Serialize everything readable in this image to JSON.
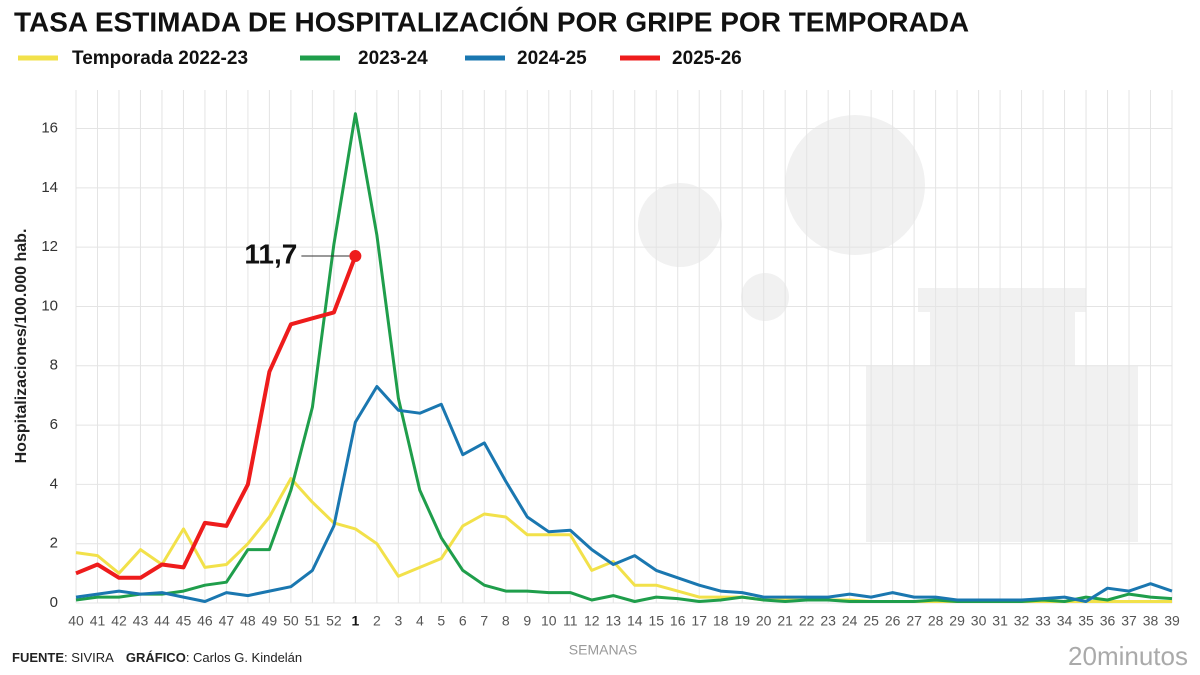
{
  "chart_data": {
    "type": "line",
    "title": "TASA ESTIMADA DE HOSPITALIZACIÓN POR GRIPE POR TEMPORADA",
    "y_label": "Hospitalizaciones/100.000 hab.",
    "x_label": "SEMANAS",
    "source": [
      "FUENTE",
      ": SIVIRA"
    ],
    "credit": [
      "GRÁFICO",
      ": Carlos G. Kindelán"
    ],
    "brand": "20minutos",
    "categories": [
      "40",
      "41",
      "42",
      "43",
      "44",
      "45",
      "46",
      "47",
      "48",
      "49",
      "50",
      "51",
      "52",
      "1",
      "2",
      "3",
      "4",
      "5",
      "6",
      "7",
      "8",
      "9",
      "10",
      "11",
      "12",
      "13",
      "14",
      "15",
      "16",
      "17",
      "18",
      "19",
      "20",
      "21",
      "22",
      "23",
      "24",
      "25",
      "26",
      "27",
      "28",
      "29",
      "30",
      "31",
      "32",
      "33",
      "34",
      "35",
      "36",
      "37",
      "38",
      "39"
    ],
    "series": [
      {
        "name": "Temporada 2022-23",
        "color": "#f2e14a",
        "values": [
          1.7,
          1.6,
          1.0,
          1.8,
          1.3,
          2.5,
          1.2,
          1.3,
          2.0,
          2.9,
          4.2,
          3.4,
          2.7,
          2.5,
          2.0,
          0.9,
          1.2,
          1.5,
          2.6,
          3.0,
          2.9,
          2.3,
          2.3,
          2.3,
          1.1,
          1.4,
          0.6,
          0.6,
          0.4,
          0.2,
          0.2,
          0.2,
          0.1,
          0.1,
          0.1,
          0.1,
          0.1,
          0.05,
          0.05,
          0.05,
          0.05,
          0.05,
          0.05,
          0.05,
          0.05,
          0.05,
          0.05,
          0.05,
          0.05,
          0.05,
          0.05,
          0.05
        ]
      },
      {
        "name": "2023-24",
        "color": "#1f9e4b",
        "values": [
          0.1,
          0.2,
          0.2,
          0.3,
          0.3,
          0.4,
          0.6,
          0.7,
          1.8,
          1.8,
          3.8,
          6.6,
          12.1,
          16.5,
          12.4,
          6.9,
          3.8,
          2.2,
          1.1,
          0.6,
          0.4,
          0.4,
          0.35,
          0.35,
          0.1,
          0.25,
          0.05,
          0.2,
          0.15,
          0.05,
          0.1,
          0.2,
          0.1,
          0.05,
          0.1,
          0.1,
          0.05,
          0.05,
          0.05,
          0.05,
          0.1,
          0.05,
          0.05,
          0.05,
          0.05,
          0.1,
          0.05,
          0.2,
          0.1,
          0.3,
          0.2,
          0.15
        ]
      },
      {
        "name": "2024-25",
        "color": "#1a77b0",
        "values": [
          0.2,
          0.3,
          0.4,
          0.3,
          0.35,
          0.2,
          0.05,
          0.35,
          0.25,
          0.4,
          0.55,
          1.1,
          2.6,
          6.1,
          7.3,
          6.5,
          6.4,
          6.7,
          5.0,
          5.4,
          4.1,
          2.9,
          2.4,
          2.45,
          1.8,
          1.3,
          1.6,
          1.1,
          0.85,
          0.6,
          0.4,
          0.35,
          0.2,
          0.2,
          0.2,
          0.2,
          0.3,
          0.2,
          0.35,
          0.2,
          0.2,
          0.1,
          0.1,
          0.1,
          0.1,
          0.15,
          0.2,
          0.05,
          0.5,
          0.4,
          0.65,
          0.4
        ]
      },
      {
        "name": "2025-26",
        "color": "#ee1c1c",
        "values": [
          1.0,
          1.3,
          0.85,
          0.85,
          1.3,
          1.2,
          2.7,
          2.6,
          4.0,
          7.8,
          9.4,
          9.6,
          9.8,
          11.7,
          null,
          null,
          null,
          null,
          null,
          null,
          null,
          null,
          null,
          null,
          null,
          null,
          null,
          null,
          null,
          null,
          null,
          null,
          null,
          null,
          null,
          null,
          null,
          null,
          null,
          null,
          null,
          null,
          null,
          null,
          null,
          null,
          null,
          null,
          null,
          null,
          null,
          null
        ],
        "value_labels": [
          null,
          null,
          null,
          null,
          null,
          null,
          null,
          null,
          null,
          null,
          null,
          null,
          null,
          "11,7",
          null,
          null,
          null,
          null,
          null,
          null,
          null,
          null,
          null,
          null,
          null,
          null,
          null,
          null,
          null,
          null,
          null,
          null,
          null,
          null,
          null,
          null,
          null,
          null,
          null,
          null,
          null,
          null,
          null,
          null,
          null,
          null,
          null,
          null,
          null,
          null,
          null,
          null
        ]
      }
    ],
    "ylim": [
      0,
      17.3
    ],
    "yticks": [
      0,
      2,
      4,
      6,
      8,
      10,
      12,
      14,
      16
    ],
    "grid": true
  }
}
